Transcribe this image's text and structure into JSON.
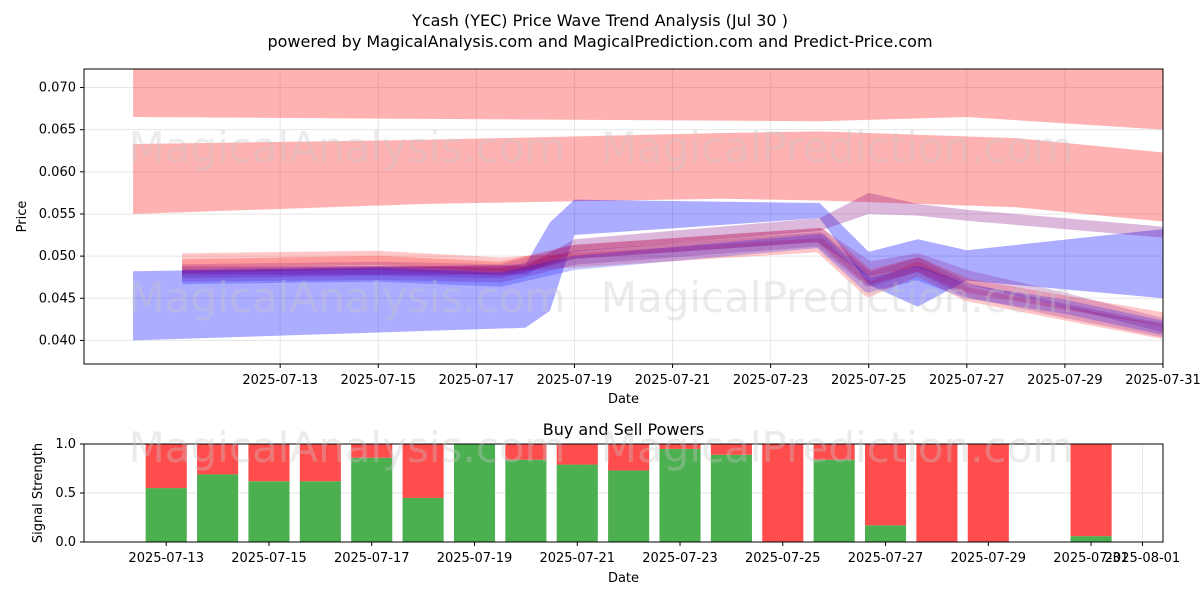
{
  "title_line1": "Ycash (YEC) Price Wave Trend Analysis (Jul 30 )",
  "title_line2": "powered by MagicalAnalysis.com and MagicalPrediction.com and Predict-Price.com",
  "watermarks": [
    "MagicalAnalysis.com",
    "MagicalPrediction.com"
  ],
  "colors": {
    "red_band": "#ff0000",
    "blue_band": "#0000ff",
    "purple_band": "#800080",
    "buy": "#4caf50",
    "sell": "#ff4d4d"
  },
  "chart_data": [
    {
      "type": "area",
      "xlabel": "Date",
      "ylabel": "Price",
      "x_ticks": [
        "2025-07-13",
        "2025-07-15",
        "2025-07-17",
        "2025-07-19",
        "2025-07-21",
        "2025-07-23",
        "2025-07-25",
        "2025-07-27",
        "2025-07-29",
        "2025-07-31"
      ],
      "y_ticks": [
        "0.040",
        "0.045",
        "0.050",
        "0.055",
        "0.060",
        "0.065",
        "0.070"
      ],
      "xlim": [
        "2025-07-09",
        "2025-07-31"
      ],
      "ylim": [
        0.0372,
        0.0722
      ],
      "grid": true,
      "bands": [
        {
          "color": "red",
          "x": [
            "2025-07-10",
            "2025-07-24",
            "2025-07-27",
            "2025-07-31"
          ],
          "lower": [
            0.0665,
            0.066,
            0.0665,
            0.065
          ],
          "upper": [
            0.075,
            0.075,
            0.075,
            0.075
          ]
        },
        {
          "color": "red",
          "x": [
            "2025-07-10",
            "2025-07-16",
            "2025-07-22",
            "2025-07-24",
            "2025-07-28",
            "2025-07-31"
          ],
          "lower": [
            0.055,
            0.0562,
            0.0568,
            0.0566,
            0.0558,
            0.0541
          ],
          "upper": [
            0.0633,
            0.0638,
            0.0646,
            0.0648,
            0.064,
            0.0623
          ]
        },
        {
          "color": "blue",
          "x": [
            "2025-07-10",
            "2025-07-18",
            "2025-07-18.5",
            "2025-07-19",
            "2025-07-24",
            "2025-07-25",
            "2025-07-26",
            "2025-07-27",
            "2025-07-31"
          ],
          "lower": [
            0.04,
            0.0415,
            0.0435,
            0.0525,
            0.0545,
            0.0466,
            0.044,
            0.0471,
            0.045
          ],
          "upper": [
            0.0482,
            0.049,
            0.054,
            0.0567,
            0.0563,
            0.0505,
            0.052,
            0.0507,
            0.0532
          ]
        },
        {
          "color": "purple",
          "x": [
            "2025-07-11",
            "2025-07-18",
            "2025-07-19",
            "2025-07-24",
            "2025-07-25",
            "2025-07-26",
            "2025-07-27",
            "2025-07-31"
          ],
          "lower": [
            0.0478,
            0.0478,
            0.0505,
            0.053,
            0.055,
            0.0548,
            0.0542,
            0.0522
          ],
          "upper": [
            0.0488,
            0.0488,
            0.052,
            0.0545,
            0.0575,
            0.0562,
            0.0555,
            0.0535
          ]
        }
      ],
      "wave_lines": [
        {
          "color": "red",
          "x": [
            "2025-07-11",
            "2025-07-15",
            "2025-07-17.5",
            "2025-07-19",
            "2025-07-24",
            "2025-07-25",
            "2025-07-26",
            "2025-07-27",
            "2025-07-29",
            "2025-07-31"
          ],
          "y": [
            0.0495,
            0.0498,
            0.049,
            0.0495,
            0.0513,
            0.046,
            0.0485,
            0.0455,
            0.0432,
            0.041
          ]
        },
        {
          "color": "red",
          "x": [
            "2025-07-11",
            "2025-07-15",
            "2025-07-17.5",
            "2025-07-19",
            "2025-07-24",
            "2025-07-25",
            "2025-07-26",
            "2025-07-27",
            "2025-07-29",
            "2025-07-31"
          ],
          "y": [
            0.0488,
            0.0492,
            0.0485,
            0.0505,
            0.0525,
            0.0475,
            0.049,
            0.0465,
            0.0445,
            0.0425
          ]
        },
        {
          "color": "purple",
          "x": [
            "2025-07-11",
            "2025-07-15",
            "2025-07-17.5",
            "2025-07-19",
            "2025-07-24",
            "2025-07-25",
            "2025-07-26",
            "2025-07-27",
            "2025-07-29",
            "2025-07-31"
          ],
          "y": [
            0.0482,
            0.0485,
            0.0482,
            0.0505,
            0.0525,
            0.0485,
            0.0495,
            0.0475,
            0.0448,
            0.0418
          ]
        },
        {
          "color": "purple",
          "x": [
            "2025-07-11",
            "2025-07-15",
            "2025-07-17.5",
            "2025-07-19",
            "2025-07-24",
            "2025-07-25",
            "2025-07-26",
            "2025-07-27",
            "2025-07-29",
            "2025-07-31"
          ],
          "y": [
            0.0478,
            0.048,
            0.0477,
            0.0498,
            0.052,
            0.0472,
            0.049,
            0.046,
            0.0435,
            0.0412
          ]
        },
        {
          "color": "blue",
          "x": [
            "2025-07-11",
            "2025-07-15",
            "2025-07-17.5",
            "2025-07-19",
            "2025-07-24",
            "2025-07-25",
            "2025-07-26",
            "2025-07-27",
            "2025-07-29",
            "2025-07-31"
          ],
          "y": [
            0.0475,
            0.0478,
            0.0472,
            0.0492,
            0.0518,
            0.0465,
            0.048,
            0.0458,
            0.044,
            0.0415
          ]
        }
      ]
    },
    {
      "type": "bar",
      "title": "Buy and Sell Powers",
      "xlabel": "Date",
      "ylabel": "Signal Strength",
      "x_ticks": [
        "2025-07-13",
        "2025-07-15",
        "2025-07-17",
        "2025-07-19",
        "2025-07-21",
        "2025-07-23",
        "2025-07-25",
        "2025-07-27",
        "2025-07-29",
        "2025-07-31",
        "2025-08-01"
      ],
      "y_ticks": [
        "0.0",
        "0.5",
        "1.0"
      ],
      "xlim": [
        "2025-07-11.4",
        "2025-08-01.4"
      ],
      "ylim": [
        0,
        1
      ],
      "grid": true,
      "categories": [
        "2025-07-13",
        "2025-07-14",
        "2025-07-15",
        "2025-07-16",
        "2025-07-17",
        "2025-07-18",
        "2025-07-19",
        "2025-07-20",
        "2025-07-21",
        "2025-07-22",
        "2025-07-23",
        "2025-07-24",
        "2025-07-25",
        "2025-07-26",
        "2025-07-27",
        "2025-07-28",
        "2025-07-29",
        "2025-07-31"
      ],
      "series": [
        {
          "name": "buy",
          "values": [
            0.55,
            0.69,
            0.62,
            0.62,
            0.86,
            0.45,
            1.0,
            0.84,
            0.79,
            0.73,
            0.95,
            0.89,
            0.0,
            0.84,
            0.17,
            0.0,
            0.0,
            0.06
          ]
        },
        {
          "name": "sell",
          "values": [
            0.45,
            0.31,
            0.38,
            0.38,
            0.14,
            0.55,
            0.0,
            0.16,
            0.21,
            0.27,
            0.05,
            0.11,
            1.0,
            0.16,
            0.83,
            1.0,
            1.0,
            0.94
          ]
        }
      ]
    }
  ]
}
